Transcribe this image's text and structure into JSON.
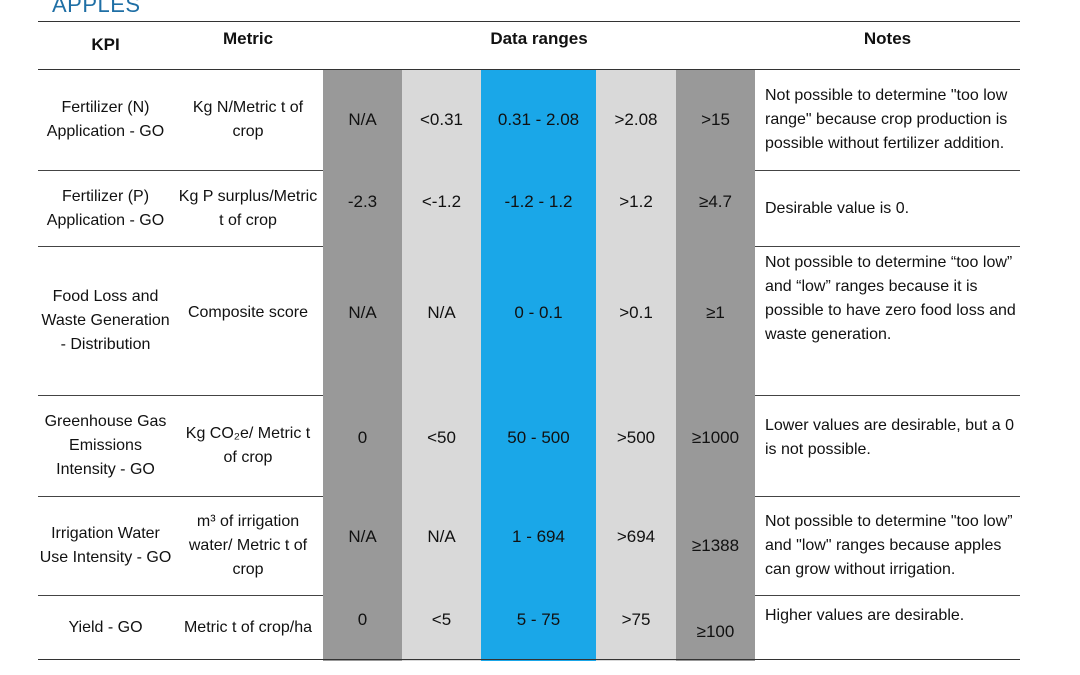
{
  "section_title": "APPLES",
  "headers": {
    "kpi": "KPI",
    "metric": "Metric",
    "ranges": "Data ranges",
    "notes": "Notes"
  },
  "colors": {
    "too_low": "#999999",
    "low": "#d9d9d9",
    "desirable": "#1aa7e8",
    "high": "#d9d9d9",
    "too_high": "#999999"
  },
  "rows": [
    {
      "kpi": "Fertilizer (N) Application - GO",
      "metric": "Kg N/Metric t of crop",
      "r1": "N/A",
      "r2": "<0.31",
      "r3": "0.31 - 2.08",
      "r4": ">2.08",
      "r5": ">15",
      "notes": "Not possible to determine \"too low range\" because crop production is possible without fertilizer addition."
    },
    {
      "kpi": "Fertilizer (P) Application - GO",
      "metric": "Kg P surplus/Metric t of crop",
      "r1": "-2.3",
      "r2": "<-1.2",
      "r3": "-1.2 - 1.2",
      "r4": ">1.2",
      "r5": "≥4.7",
      "notes": "Desirable value is 0."
    },
    {
      "kpi": "Food Loss and Waste Generation - Distribution",
      "metric": "Composite score",
      "r1": "N/A",
      "r2": "N/A",
      "r3": "0 - 0.1",
      "r4": ">0.1",
      "r5": "≥1",
      "notes": "Not possible to determine “too low” and “low” ranges because it is possible to have zero food loss and waste generation."
    },
    {
      "kpi": "Greenhouse Gas Emissions Intensity - GO",
      "metric": "Kg CO₂e/ Metric t of crop",
      "r1": "0",
      "r2": "<50",
      "r3": "50 - 500",
      "r4": ">500",
      "r5": "≥1000",
      "notes": "Lower values are desirable, but a 0 is not possible."
    },
    {
      "kpi": "Irrigation Water Use Intensity - GO",
      "metric": "m³ of irrigation water/ Metric t of crop",
      "r1": "N/A",
      "r2": "N/A",
      "r3": "1 - 694",
      "r4": ">694",
      "r5": "≥1388",
      "notes": "Not possible to determine \"too low” and \"low\" ranges because apples can grow without irrigation."
    },
    {
      "kpi": "Yield - GO",
      "metric": "Metric t of crop/ha",
      "r1": "0",
      "r2": "<5",
      "r3": "5 - 75",
      "r4": ">75",
      "r5": "≥100",
      "notes": "Higher values are desirable."
    }
  ]
}
